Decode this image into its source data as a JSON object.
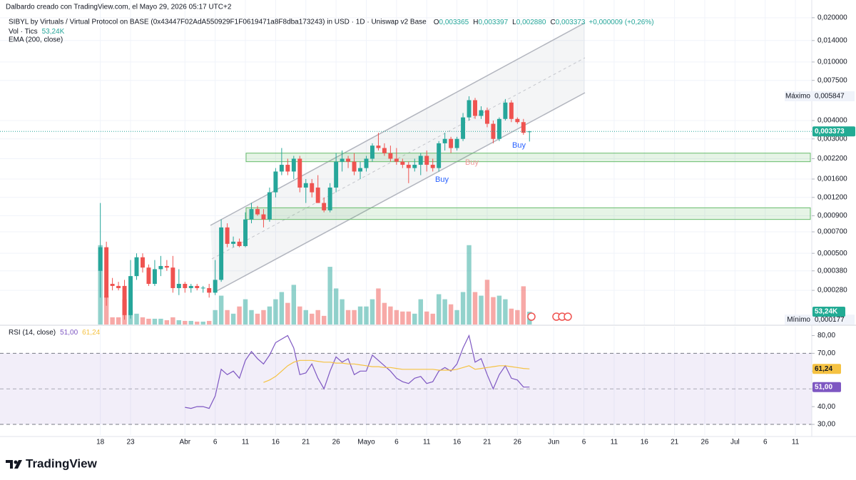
{
  "header": {
    "credit": "Dalbardo creado con TradingView.com, el Mayo 29, 2026 05:17 UTC+2",
    "brand": "TradingView"
  },
  "chart_data": [
    {
      "type": "candlestick",
      "title": "SIBYL by Virtuals / Virtual Protocol on BASE (0x43447F02AdA550929F1F0619471a8F8dba173243) in USD · 1D · Uniswap v2 Base",
      "ohlc_legend": [
        {
          "key": "O",
          "label": "0,003365"
        },
        {
          "key": "H",
          "label": "0,003397"
        },
        {
          "key": "L",
          "label": "0,002880"
        },
        {
          "key": "C",
          "label": "0,003373"
        }
      ],
      "change_label": "+0,000009 (+0,26%)",
      "log_scale": true,
      "grid": true,
      "ylim": [
        0.000164,
        0.0264
      ],
      "yticks": [
        {
          "value": 0.02,
          "label": "0,020000"
        },
        {
          "value": 0.014,
          "label": "0,014000"
        },
        {
          "value": 0.01,
          "label": "0,010000"
        },
        {
          "value": 0.0075,
          "label": "0,007500"
        },
        {
          "value": 0.004,
          "label": "0,004000"
        },
        {
          "value": 0.003,
          "label": "0,003000"
        },
        {
          "value": 0.0022,
          "label": "0,002200"
        },
        {
          "value": 0.0016,
          "label": "0,001600"
        },
        {
          "value": 0.0012,
          "label": "0,001200"
        },
        {
          "value": 0.0009,
          "label": "0,000900"
        },
        {
          "value": 0.0007,
          "label": "0,000700"
        },
        {
          "value": 0.0005,
          "label": "0,000500"
        },
        {
          "value": 0.00038,
          "label": "0,000380"
        },
        {
          "value": 0.00028,
          "label": "0,000280"
        }
      ],
      "xlim": [
        -16.6,
        117.7
      ],
      "xticks": [
        {
          "value": 0,
          "label": "18"
        },
        {
          "value": 5,
          "label": "23"
        },
        {
          "value": 14,
          "label": "Abr"
        },
        {
          "value": 19,
          "label": "6"
        },
        {
          "value": 24,
          "label": "11"
        },
        {
          "value": 29,
          "label": "16"
        },
        {
          "value": 34,
          "label": "21"
        },
        {
          "value": 39,
          "label": "26"
        },
        {
          "value": 44,
          "label": "Mayo"
        },
        {
          "value": 49,
          "label": "6"
        },
        {
          "value": 54,
          "label": "11"
        },
        {
          "value": 59,
          "label": "16"
        },
        {
          "value": 64,
          "label": "21"
        },
        {
          "value": 69,
          "label": "26"
        },
        {
          "value": 75,
          "label": "Jun"
        },
        {
          "value": 80,
          "label": "6"
        },
        {
          "value": 85,
          "label": "11"
        },
        {
          "value": 90,
          "label": "16"
        },
        {
          "value": 95,
          "label": "21"
        },
        {
          "value": 100,
          "label": "26"
        },
        {
          "value": 105,
          "label": "Jul"
        },
        {
          "value": 110,
          "label": "6"
        },
        {
          "value": 115,
          "label": "11"
        }
      ],
      "up_color": "#26a69a",
      "down_color": "#ef5350",
      "open": [
        0.00038,
        0.00055,
        0.00031,
        0.0003,
        0.0003,
        0.00019,
        0.00035,
        0.00047,
        0.0004,
        0.00031,
        0.00039,
        0.00041,
        0.0004,
        0.00029,
        0.00031,
        0.00029,
        0.0003,
        0.00029,
        0.00029,
        0.00027,
        0.00033,
        0.00075,
        0.00058,
        0.0006,
        0.00056,
        0.00085,
        0.001,
        0.00092,
        0.00085,
        0.0013,
        0.0018,
        0.002,
        0.0018,
        0.0022,
        0.0014,
        0.0015,
        0.0014,
        0.0011,
        0.00098,
        0.0014,
        0.0021,
        0.0022,
        0.0021,
        0.0018,
        0.0019,
        0.0022,
        0.0027,
        0.0026,
        0.0024,
        0.0022,
        0.0021,
        0.002,
        0.0019,
        0.002,
        0.0023,
        0.002,
        0.0019,
        0.0028,
        0.003,
        0.0026,
        0.003,
        0.0042,
        0.0055,
        0.0043,
        0.0047,
        0.0038,
        0.003,
        0.0041,
        0.0053,
        0.0041,
        0.0039,
        0.003365
      ],
      "high": [
        0.0011,
        0.0006,
        0.00034,
        0.00032,
        0.00033,
        0.00045,
        0.0005,
        0.0005,
        0.00042,
        0.00045,
        0.00048,
        0.00045,
        0.00048,
        0.00039,
        0.00032,
        0.00031,
        0.00031,
        0.0003,
        0.00031,
        0.00045,
        0.00085,
        0.0008,
        0.00065,
        0.00063,
        0.00095,
        0.0011,
        0.00105,
        0.001,
        0.0014,
        0.0019,
        0.0026,
        0.0022,
        0.0023,
        0.0023,
        0.0016,
        0.0016,
        0.0017,
        0.0012,
        0.0015,
        0.0024,
        0.0025,
        0.0023,
        0.0024,
        0.0021,
        0.0023,
        0.0028,
        0.0033,
        0.0028,
        0.0027,
        0.0026,
        0.0022,
        0.0021,
        0.0022,
        0.0024,
        0.0025,
        0.0022,
        0.0029,
        0.0033,
        0.0031,
        0.0031,
        0.0045,
        0.005847,
        0.0057,
        0.005,
        0.0049,
        0.004,
        0.0042,
        0.0056,
        0.0055,
        0.0042,
        0.0041,
        0.003397
      ],
      "low": [
        0.00025,
        0.00022,
        0.00028,
        0.00028,
        0.000177,
        0.00018,
        0.00033,
        0.00037,
        0.0003,
        0.0003,
        0.00035,
        0.00038,
        0.00027,
        0.00026,
        0.00027,
        0.00027,
        0.00028,
        0.00027,
        0.00025,
        0.00026,
        0.00032,
        0.00055,
        0.00055,
        0.00055,
        0.00055,
        0.0008,
        0.0009,
        0.00075,
        0.00082,
        0.0012,
        0.0017,
        0.0017,
        0.0016,
        0.0013,
        0.0011,
        0.0012,
        0.0011,
        0.00095,
        0.00095,
        0.0013,
        0.0018,
        0.0019,
        0.0017,
        0.0016,
        0.0018,
        0.0021,
        0.0025,
        0.0023,
        0.0021,
        0.002,
        0.0019,
        0.0015,
        0.0018,
        0.0017,
        0.0018,
        0.0018,
        0.0018,
        0.0025,
        0.0024,
        0.0025,
        0.0029,
        0.004,
        0.0041,
        0.0041,
        0.0036,
        0.0028,
        0.0029,
        0.004,
        0.0039,
        0.0038,
        0.0032,
        0.00288
      ],
      "close": [
        0.00055,
        0.00025,
        0.0003,
        0.00029,
        0.00019,
        0.00035,
        0.00047,
        0.0004,
        0.00031,
        0.00039,
        0.00041,
        0.0004,
        0.00029,
        0.00031,
        0.00029,
        0.0003,
        0.00029,
        0.000292,
        0.00027,
        0.00033,
        0.00075,
        0.00058,
        0.0006,
        0.00056,
        0.00085,
        0.001,
        0.00092,
        0.00085,
        0.0013,
        0.0018,
        0.002,
        0.0018,
        0.0022,
        0.0014,
        0.0015,
        0.0013,
        0.0011,
        0.00098,
        0.0014,
        0.0021,
        0.0022,
        0.0021,
        0.0018,
        0.0019,
        0.0022,
        0.0027,
        0.0026,
        0.0024,
        0.0022,
        0.0021,
        0.002,
        0.0019,
        0.002,
        0.0023,
        0.002,
        0.0019,
        0.0028,
        0.003,
        0.0026,
        0.003,
        0.0042,
        0.0055,
        0.0043,
        0.0047,
        0.0038,
        0.003,
        0.0041,
        0.0053,
        0.0041,
        0.0039,
        0.0033,
        0.003373
      ],
      "last_label": "0,003373",
      "max_label": {
        "name": "Máximo",
        "value": 0.005847,
        "label": "0,005847"
      },
      "min_label": {
        "name": "Mínimo",
        "value": 0.000177,
        "label": "0,000177"
      },
      "volume": {
        "name": "Vol · Tics",
        "ylim": [
          0,
          350000
        ],
        "last_label": "53,24K",
        "values": [
          330000,
          120000,
          30000,
          30000,
          105000,
          60000,
          45000,
          30000,
          24000,
          24000,
          24000,
          18000,
          30000,
          18000,
          15000,
          15000,
          12000,
          12000,
          15000,
          60000,
          120000,
          60000,
          45000,
          75000,
          105000,
          60000,
          45000,
          60000,
          75000,
          105000,
          135000,
          90000,
          165000,
          75000,
          60000,
          45000,
          60000,
          36000,
          240000,
          150000,
          105000,
          60000,
          60000,
          75000,
          75000,
          105000,
          150000,
          90000,
          75000,
          60000,
          54000,
          54000,
          45000,
          105000,
          54000,
          45000,
          126000,
          105000,
          84000,
          60000,
          135000,
          330000,
          135000,
          120000,
          186000,
          114000,
          120000,
          105000,
          66000,
          60000,
          159000,
          53240
        ]
      },
      "indicators": [
        "EMA (200, close)"
      ],
      "zones": [
        [
          0.0021,
          0.0024
        ],
        [
          0.00085,
          0.00102
        ]
      ],
      "annotations": [
        "Buy",
        "Buy",
        "Buy"
      ]
    },
    {
      "type": "line",
      "ylim": [
        24,
        85
      ],
      "yticks": [
        {
          "value": 30,
          "label": "30,00"
        },
        {
          "value": 40,
          "label": "40,00"
        },
        {
          "value": 50,
          "label": "50,00"
        },
        {
          "value": 60,
          "label": "60,00"
        },
        {
          "value": 70,
          "label": "70,00"
        },
        {
          "value": 80,
          "label": "80,00"
        }
      ],
      "band": [
        30,
        70
      ],
      "midline": 50,
      "series": [
        {
          "name": "RSI (14, close)",
          "color": "#7e57c2",
          "last_label": "51,00",
          "values": [
            null,
            null,
            null,
            null,
            null,
            null,
            null,
            null,
            null,
            null,
            null,
            null,
            null,
            null,
            39.6,
            39,
            40,
            40,
            39,
            46,
            61,
            58,
            60,
            56,
            66,
            71,
            67,
            64,
            69,
            76,
            78,
            80,
            73,
            58,
            59,
            64,
            56,
            50,
            60,
            68,
            65,
            67,
            58,
            60,
            60,
            69,
            66,
            63,
            60,
            56,
            54,
            53,
            56,
            57,
            53,
            54,
            60,
            62,
            60,
            64,
            73,
            80,
            65,
            67,
            58,
            50,
            58,
            63,
            56,
            55,
            51,
            51
          ]
        },
        {
          "color": "#f5c242",
          "last_label": "61,24",
          "values": [
            null,
            null,
            null,
            null,
            null,
            null,
            null,
            null,
            null,
            null,
            null,
            null,
            null,
            null,
            null,
            null,
            null,
            null,
            null,
            null,
            null,
            null,
            null,
            null,
            null,
            null,
            null,
            53.6,
            55,
            57,
            60,
            63,
            65,
            66,
            66,
            66,
            65.5,
            65,
            65,
            64.5,
            64.5,
            64,
            64,
            63.5,
            63,
            62.5,
            62.5,
            62,
            62,
            61.5,
            61,
            61,
            61,
            61,
            61,
            61,
            60.5,
            60.5,
            60.5,
            61,
            62,
            63,
            61,
            61.5,
            62,
            62.5,
            63,
            63,
            62.5,
            62,
            61.5,
            61.24
          ]
        }
      ]
    }
  ]
}
